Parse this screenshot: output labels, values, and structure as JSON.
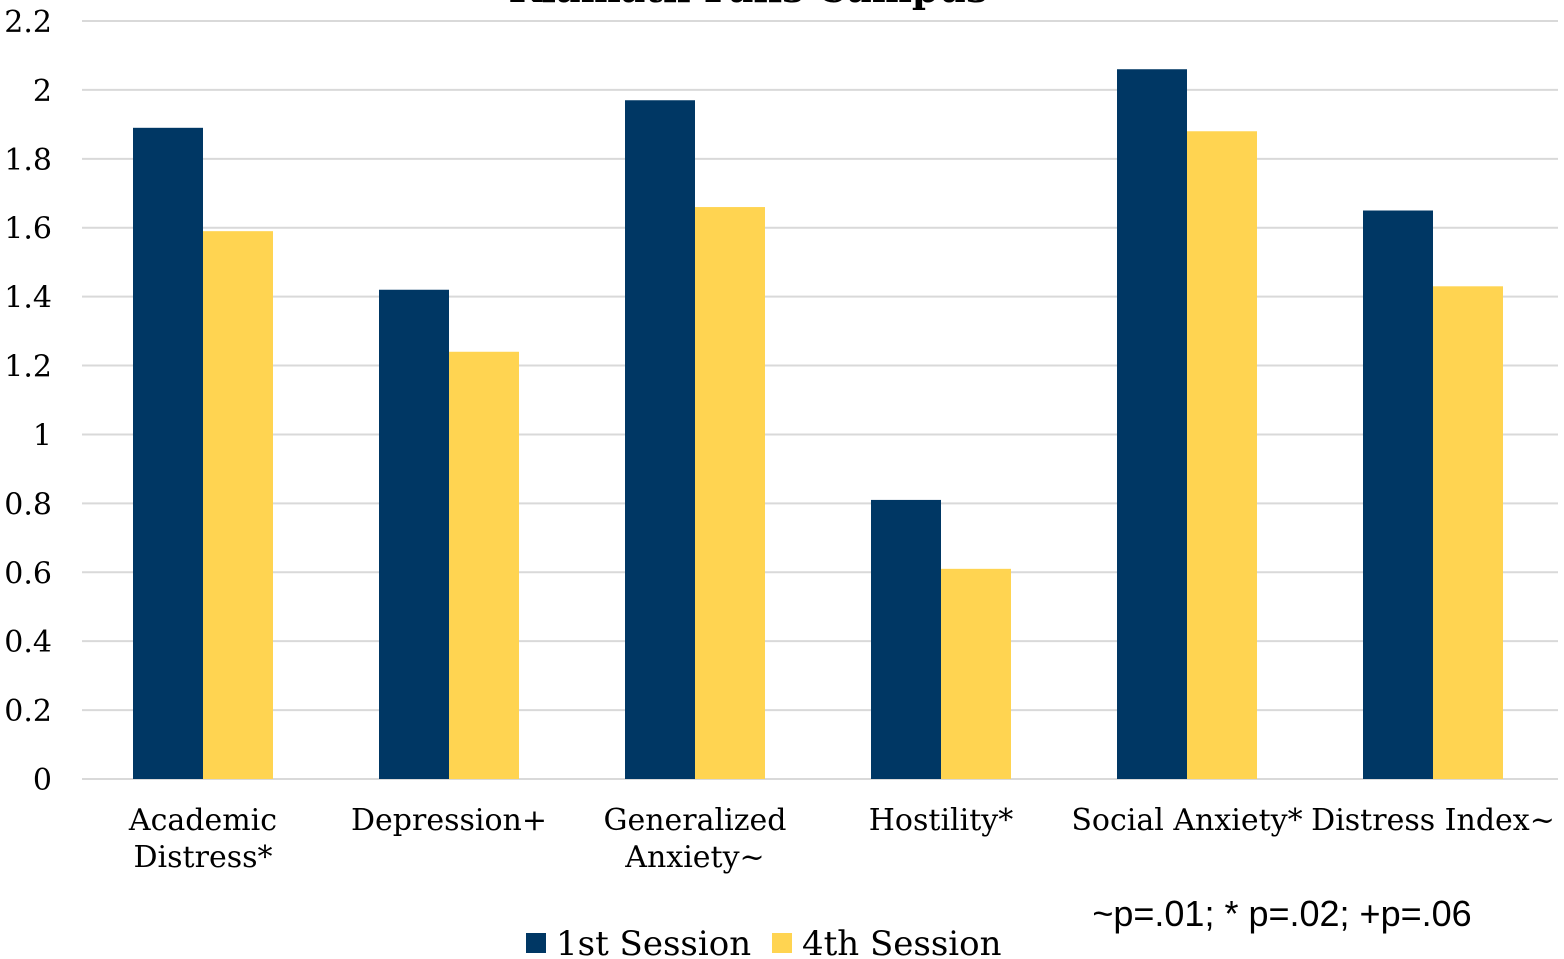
{
  "chart_data": {
    "type": "bar",
    "title": "Klamath Falls Campus",
    "categories": [
      [
        "Academic",
        "Distress*"
      ],
      [
        "Depression+"
      ],
      [
        "Generalized",
        "Anxiety~"
      ],
      [
        "Hostility*"
      ],
      [
        "Social Anxiety*"
      ],
      [
        "Distress Index~"
      ]
    ],
    "series": [
      {
        "name": "1st Session",
        "color": "#003764",
        "values": [
          1.89,
          1.42,
          1.97,
          0.81,
          2.06,
          1.65
        ]
      },
      {
        "name": "4th Session",
        "color": "#FFD451",
        "values": [
          1.59,
          1.24,
          1.66,
          0.61,
          1.88,
          1.43
        ]
      }
    ],
    "ylim": [
      0,
      2.2
    ],
    "yticks": [
      "0",
      "0.2",
      "0.4",
      "0.6",
      "0.8",
      "1",
      "1.2",
      "1.4",
      "1.6",
      "1.8",
      "2",
      "2.2"
    ],
    "grid": true,
    "gridColor": "#D9D9D9",
    "legend_position": "bottom",
    "annotation": "~p=.01; * p=.02; +p=.06"
  }
}
